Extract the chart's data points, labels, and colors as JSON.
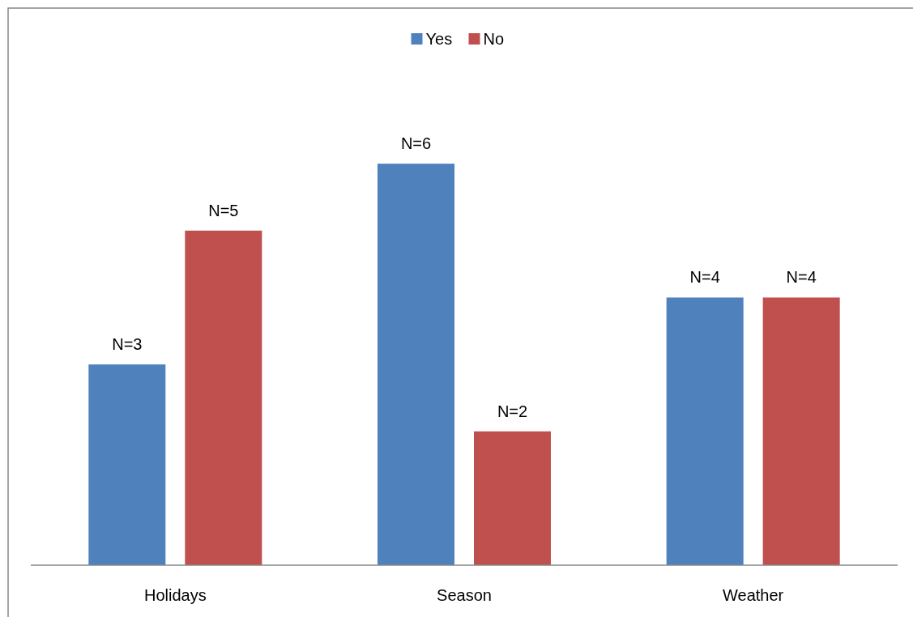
{
  "chart_data": {
    "type": "bar",
    "categories": [
      "Holidays",
      "Season",
      "Weather"
    ],
    "series": [
      {
        "name": "Yes",
        "color": "#4f81bd",
        "values": [
          3,
          6,
          4
        ],
        "value_labels": [
          "N=3",
          "N=6",
          "N=4"
        ]
      },
      {
        "name": "No",
        "color": "#c0504d",
        "values": [
          5,
          2,
          4
        ],
        "value_labels": [
          "N=5",
          "N=2",
          "N=4"
        ]
      }
    ],
    "legend": "top",
    "grid": false
  }
}
